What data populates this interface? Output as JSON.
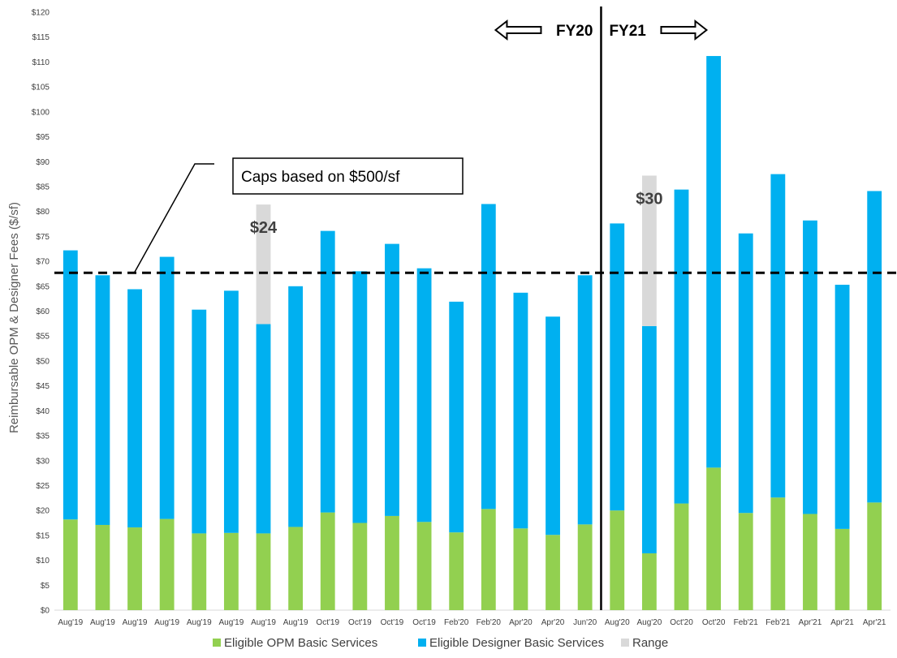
{
  "chart_data": {
    "type": "bar",
    "stacked": true,
    "ylabel": "Reimbursable OPM & Designer Fees ($/sf)",
    "ylim": [
      0,
      120
    ],
    "ytick_step": 5,
    "ytick_prefix": "$",
    "categories": [
      "Aug'19",
      "Aug'19",
      "Aug'19",
      "Aug'19",
      "Aug'19",
      "Aug'19",
      "Aug'19",
      "Aug'19",
      "Oct'19",
      "Oct'19",
      "Oct'19",
      "Oct'19",
      "Feb'20",
      "Feb'20",
      "Apr'20",
      "Apr'20",
      "Jun'20",
      "Aug'20",
      "Aug'20",
      "Oct'20",
      "Oct'20",
      "Feb'21",
      "Feb'21",
      "Apr'21",
      "Apr'21",
      "Apr'21"
    ],
    "series": [
      {
        "name": "Eligible OPM Basic Services",
        "color": "#92d050",
        "values": [
          18.2,
          17.1,
          16.6,
          18.3,
          15.4,
          15.5,
          15.4,
          16.7,
          19.6,
          17.5,
          18.9,
          17.7,
          15.6,
          20.3,
          16.4,
          15.1,
          17.2,
          20.0,
          11.4,
          21.4,
          28.6,
          19.5,
          22.6,
          19.3,
          16.3,
          21.6
        ]
      },
      {
        "name": "Eligible Designer Basic Services",
        "color": "#00b0f0",
        "values": [
          54.0,
          50.1,
          47.8,
          52.6,
          44.9,
          48.6,
          42.0,
          48.3,
          56.5,
          50.5,
          54.6,
          50.9,
          46.3,
          61.2,
          47.3,
          43.8,
          50.0,
          57.6,
          45.6,
          63.0,
          82.6,
          56.1,
          64.9,
          58.9,
          49.0,
          62.5
        ]
      },
      {
        "name": "Range",
        "color": "#d9d9d9",
        "values": [
          0,
          0,
          0,
          0,
          0,
          0,
          24.0,
          0,
          0,
          0,
          0,
          0,
          0,
          0,
          0,
          0,
          0,
          0,
          30.2,
          0,
          0,
          0,
          0,
          0,
          0,
          0
        ]
      }
    ],
    "reference_line": {
      "value": 67.7,
      "style": "dashed"
    },
    "divider_after_index": 16,
    "fy_labels": {
      "left": "FY20",
      "right": "FY21"
    },
    "range_labels": [
      {
        "index": 6,
        "text": "$24"
      },
      {
        "index": 18,
        "text": "$30"
      }
    ],
    "callout": {
      "text": "Caps based on $500/sf"
    },
    "legend_position": "bottom"
  }
}
